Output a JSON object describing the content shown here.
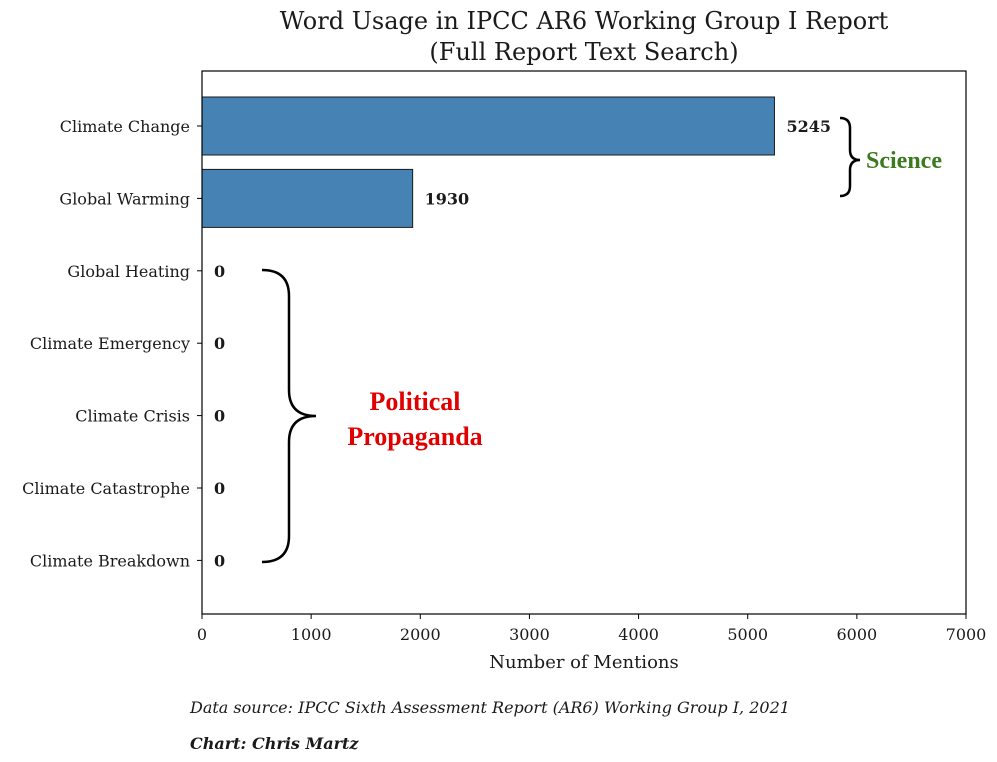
{
  "chart_data": {
    "type": "bar",
    "orientation": "horizontal",
    "title_line1": "Word Usage in IPCC AR6 Working Group I Report",
    "title_line2": "(Full Report Text Search)",
    "xlabel": "Number of Mentions",
    "ylabel": "",
    "xlim": [
      0,
      7000
    ],
    "xticks": [
      0,
      1000,
      2000,
      3000,
      4000,
      5000,
      6000,
      7000
    ],
    "categories": [
      "Climate Change",
      "Global Warming",
      "Global Heating",
      "Climate Emergency",
      "Climate Crisis",
      "Climate Catastrophe",
      "Climate Breakdown"
    ],
    "values": [
      5245,
      1930,
      0,
      0,
      0,
      0,
      0
    ],
    "bar_color": "#4682b4",
    "grid": false,
    "annotations": {
      "science": "Science",
      "political_line1": "Political",
      "political_line2": "Propaganda"
    }
  },
  "annotation_colors": {
    "science": "#3b7a1f",
    "political": "#e00000"
  },
  "footer": {
    "source": "Data source: IPCC Sixth Assessment Report (AR6) Working Group I, 2021",
    "credit": "Chart: Chris Martz"
  }
}
